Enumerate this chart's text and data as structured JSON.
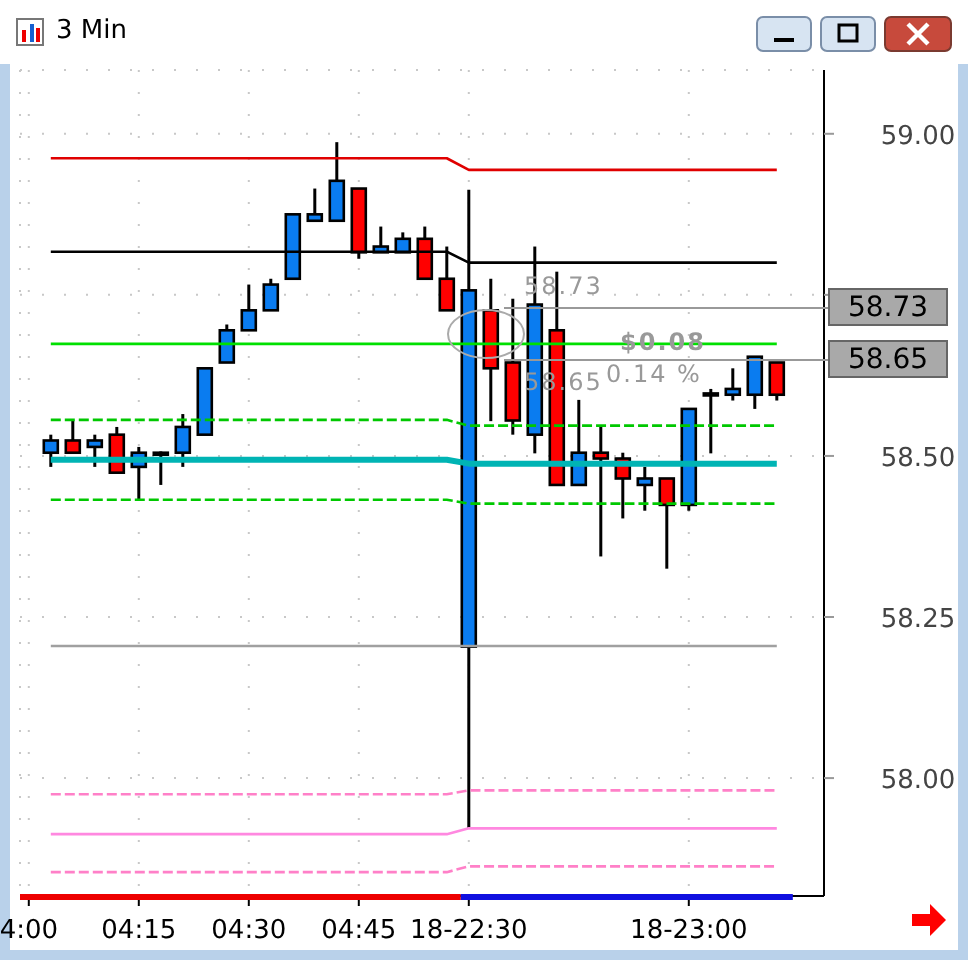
{
  "chart_data": {
    "type": "candlestick",
    "title": "3 Min",
    "categories": [
      "4:00",
      null,
      null,
      null,
      null,
      "04:15",
      null,
      null,
      null,
      null,
      "04:30",
      null,
      null,
      null,
      null,
      "04:45",
      null,
      null,
      null,
      null,
      "18-22:30",
      null,
      null,
      null,
      null,
      null,
      null,
      null,
      null,
      null,
      "18-23:00",
      null,
      null,
      null,
      null
    ],
    "ohlc": [
      null,
      [
        58.505,
        58.533,
        58.483,
        58.524
      ],
      [
        58.524,
        58.555,
        58.505,
        58.505
      ],
      [
        58.514,
        58.533,
        58.483,
        58.524
      ],
      [
        58.533,
        58.545,
        58.474,
        58.474
      ],
      [
        58.483,
        58.514,
        58.433,
        58.505
      ],
      [
        58.505,
        58.507,
        58.455,
        58.505
      ],
      [
        58.505,
        58.565,
        58.483,
        58.545
      ],
      [
        58.533,
        58.636,
        58.533,
        58.636
      ],
      [
        58.645,
        58.704,
        58.645,
        58.695
      ],
      [
        58.695,
        58.766,
        58.695,
        58.726
      ],
      [
        58.726,
        58.775,
        58.726,
        58.766
      ],
      [
        58.775,
        58.875,
        58.775,
        58.875
      ],
      [
        58.865,
        58.915,
        58.865,
        58.875
      ],
      [
        58.865,
        58.987,
        58.865,
        58.927
      ],
      [
        58.915,
        58.915,
        58.806,
        58.816
      ],
      [
        58.816,
        58.856,
        58.816,
        58.825
      ],
      [
        58.816,
        58.847,
        58.816,
        58.837
      ],
      [
        58.837,
        58.856,
        58.775,
        58.775
      ],
      [
        58.775,
        58.825,
        58.726,
        58.726
      ],
      [
        58.204,
        58.913,
        57.922,
        58.757
      ],
      [
        58.726,
        58.775,
        58.554,
        58.636
      ],
      [
        58.645,
        58.744,
        58.533,
        58.555
      ],
      [
        58.533,
        58.825,
        58.504,
        58.735
      ],
      [
        58.695,
        58.786,
        58.455,
        58.455
      ],
      [
        58.455,
        58.587,
        58.455,
        58.505
      ],
      [
        58.505,
        58.546,
        58.344,
        58.496
      ],
      [
        58.496,
        58.505,
        58.403,
        58.465
      ],
      [
        58.455,
        58.483,
        58.415,
        58.465
      ],
      [
        58.465,
        58.465,
        58.325,
        58.424
      ],
      [
        58.424,
        58.573,
        58.415,
        58.573
      ],
      [
        58.597,
        58.604,
        58.504,
        58.597
      ],
      [
        58.595,
        58.636,
        58.586,
        58.604
      ],
      [
        58.595,
        58.654,
        58.573,
        58.654
      ],
      [
        58.645,
        58.645,
        58.586,
        58.595
      ]
    ],
    "colors": [
      null,
      "#0a7cf0",
      "#ff0000",
      "#0a7cf0",
      "#ff0000",
      "#0a7cf0",
      "#0a7cf0",
      "#0a7cf0",
      "#0a7cf0",
      "#0a7cf0",
      "#0a7cf0",
      "#0a7cf0",
      "#0a7cf0",
      "#0a7cf0",
      "#0a7cf0",
      "#ff0000",
      "#0a7cf0",
      "#0a7cf0",
      "#ff0000",
      "#ff0000",
      "#0a7cf0",
      "#ff0000",
      "#ff0000",
      "#0a7cf0",
      "#ff0000",
      "#0a7cf0",
      "#ff0000",
      "#ff0000",
      "#0a7cf0",
      "#ff0000",
      "#0a7cf0",
      "#0a7cf0",
      "#0a7cf0",
      "#0a7cf0",
      "#ff0000"
    ],
    "series": [
      {
        "type": "line",
        "color": "#e00000",
        "line_style": "solid",
        "values": [
          null,
          58.962,
          58.962,
          58.962,
          58.962,
          58.962,
          58.962,
          58.962,
          58.962,
          58.962,
          58.962,
          58.962,
          58.962,
          58.962,
          58.962,
          58.962,
          58.962,
          58.962,
          58.962,
          58.962,
          58.944,
          58.944,
          58.944,
          58.944,
          58.944,
          58.944,
          58.944,
          58.944,
          58.944,
          58.944,
          58.944,
          58.944,
          58.944,
          58.944,
          58.944
        ]
      },
      {
        "type": "line",
        "color": "#000000",
        "line_style": "solid",
        "values": [
          null,
          58.817,
          58.817,
          58.817,
          58.817,
          58.817,
          58.817,
          58.817,
          58.817,
          58.817,
          58.817,
          58.817,
          58.817,
          58.817,
          58.817,
          58.817,
          58.817,
          58.817,
          58.817,
          58.817,
          58.8,
          58.8,
          58.8,
          58.8,
          58.8,
          58.8,
          58.8,
          58.8,
          58.8,
          58.8,
          58.8,
          58.8,
          58.8,
          58.8,
          58.8
        ]
      },
      {
        "type": "line",
        "color": "#00e000",
        "line_style": "solid",
        "values": [
          null,
          58.674,
          58.674,
          58.674,
          58.674,
          58.674,
          58.674,
          58.674,
          58.674,
          58.674,
          58.674,
          58.674,
          58.674,
          58.674,
          58.674,
          58.674,
          58.674,
          58.674,
          58.674,
          58.674,
          58.674,
          58.674,
          58.674,
          58.674,
          58.674,
          58.674,
          58.674,
          58.674,
          58.674,
          58.674,
          58.674,
          58.674,
          58.674,
          58.674,
          58.674
        ]
      },
      {
        "type": "line",
        "color": "#00c800",
        "line_style": "dashed",
        "values": [
          null,
          58.556,
          58.556,
          58.556,
          58.556,
          58.556,
          58.556,
          58.556,
          58.556,
          58.556,
          58.556,
          58.556,
          58.556,
          58.556,
          58.556,
          58.556,
          58.556,
          58.556,
          58.556,
          58.556,
          58.547,
          58.547,
          58.547,
          58.547,
          58.547,
          58.547,
          58.547,
          58.547,
          58.547,
          58.547,
          58.547,
          58.547,
          58.547,
          58.547,
          58.547
        ]
      },
      {
        "type": "line",
        "color": "#00b4b4",
        "line_style": "solid",
        "values": [
          null,
          58.494,
          58.494,
          58.494,
          58.494,
          58.494,
          58.494,
          58.494,
          58.494,
          58.494,
          58.494,
          58.494,
          58.494,
          58.494,
          58.494,
          58.494,
          58.494,
          58.494,
          58.494,
          58.494,
          58.488,
          58.488,
          58.488,
          58.488,
          58.488,
          58.488,
          58.488,
          58.488,
          58.488,
          58.488,
          58.488,
          58.488,
          58.488,
          58.488,
          58.488
        ]
      },
      {
        "type": "line",
        "color": "#00c800",
        "line_style": "dashed",
        "values": [
          null,
          58.432,
          58.432,
          58.432,
          58.432,
          58.432,
          58.432,
          58.432,
          58.432,
          58.432,
          58.432,
          58.432,
          58.432,
          58.432,
          58.432,
          58.432,
          58.432,
          58.432,
          58.432,
          58.432,
          58.426,
          58.426,
          58.426,
          58.426,
          58.426,
          58.426,
          58.426,
          58.426,
          58.426,
          58.426,
          58.426,
          58.426,
          58.426,
          58.426,
          58.426
        ]
      },
      {
        "type": "line",
        "color": "#a0a0a0",
        "line_style": "solid",
        "values": [
          null,
          58.205,
          58.205,
          58.205,
          58.205,
          58.205,
          58.205,
          58.205,
          58.205,
          58.205,
          58.205,
          58.205,
          58.205,
          58.205,
          58.205,
          58.205,
          58.205,
          58.205,
          58.205,
          58.205,
          58.205,
          58.205,
          58.205,
          58.205,
          58.205,
          58.205,
          58.205,
          58.205,
          58.205,
          58.205,
          58.205,
          58.205,
          58.205,
          58.205,
          58.205
        ]
      },
      {
        "type": "line",
        "color": "#ff80c8",
        "line_style": "dashed",
        "values": [
          null,
          57.975,
          57.975,
          57.975,
          57.975,
          57.975,
          57.975,
          57.975,
          57.975,
          57.975,
          57.975,
          57.975,
          57.975,
          57.975,
          57.975,
          57.975,
          57.975,
          57.975,
          57.975,
          57.975,
          57.981,
          57.981,
          57.981,
          57.981,
          57.981,
          57.981,
          57.981,
          57.981,
          57.981,
          57.981,
          57.981,
          57.981,
          57.981,
          57.981,
          57.981
        ]
      },
      {
        "type": "line",
        "color": "#ff88e0",
        "line_style": "solid",
        "values": [
          null,
          57.913,
          57.913,
          57.913,
          57.913,
          57.913,
          57.913,
          57.913,
          57.913,
          57.913,
          57.913,
          57.913,
          57.913,
          57.913,
          57.913,
          57.913,
          57.913,
          57.913,
          57.913,
          57.913,
          57.922,
          57.922,
          57.922,
          57.922,
          57.922,
          57.922,
          57.922,
          57.922,
          57.922,
          57.922,
          57.922,
          57.922,
          57.922,
          57.922,
          57.922
        ]
      },
      {
        "type": "line",
        "color": "#ff80c8",
        "line_style": "dashed",
        "values": [
          null,
          57.854,
          57.854,
          57.854,
          57.854,
          57.854,
          57.854,
          57.854,
          57.854,
          57.854,
          57.854,
          57.854,
          57.854,
          57.854,
          57.854,
          57.854,
          57.854,
          57.854,
          57.854,
          57.854,
          57.863,
          57.863,
          57.863,
          57.863,
          57.863,
          57.863,
          57.863,
          57.863,
          57.863,
          57.863,
          57.863,
          57.863,
          57.863,
          57.863,
          57.863
        ]
      }
    ],
    "ylim": [
      57.817,
      59.099
    ],
    "yticks": [
      {
        "value": 58,
        "label": "58.00"
      },
      {
        "value": 58.25,
        "label": "58.25"
      },
      {
        "value": 58.5,
        "label": "58.50"
      },
      {
        "value": 58.75,
        "label": null
      },
      {
        "value": 59,
        "label": "59.00"
      }
    ],
    "ref_lines": [
      {
        "axis": "y",
        "value": 58.73,
        "label": "58.73",
        "color": "#999999"
      },
      {
        "axis": "y",
        "value": 58.65,
        "label": "58.65",
        "color": "#999999"
      }
    ],
    "annotations": [
      "58.73",
      "58.65",
      "$0.08",
      "0.14 %"
    ],
    "grid": true
  }
}
